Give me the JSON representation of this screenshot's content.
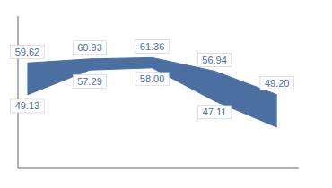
{
  "chart_data": {
    "type": "range_area",
    "x": [
      0,
      1,
      2,
      3,
      4
    ],
    "values": [
      59.62,
      60.93,
      61.36,
      56.94,
      49.2
    ],
    "low_values": [
      49.13,
      57.29,
      58.0,
      47.11,
      38.5
    ],
    "value_labels": [
      "59.62",
      "60.93",
      "61.36",
      "56.94",
      "49.20"
    ],
    "low_value_labels": [
      "49.13",
      "57.29",
      "58.00",
      "47.11",
      null
    ],
    "data_labels": true,
    "color": "#4A6FA0",
    "xlim": [
      -0.15,
      4.35
    ],
    "ylim": [
      25,
      75
    ],
    "tick_labels": false,
    "grid": false
  }
}
